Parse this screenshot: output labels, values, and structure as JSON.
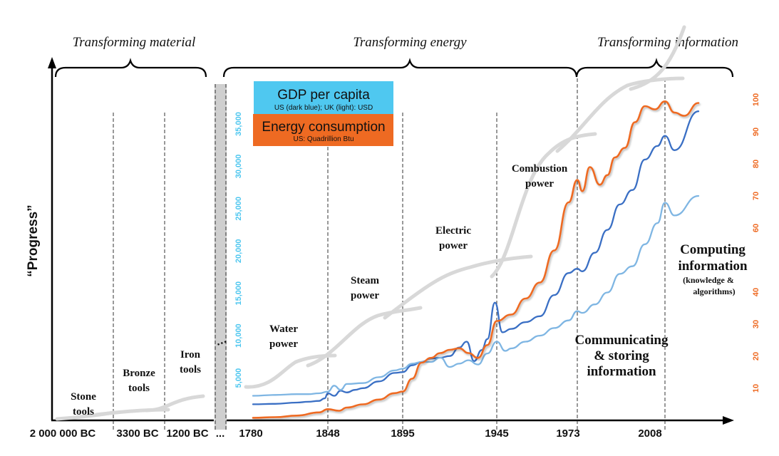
{
  "chart_data": {
    "type": "line",
    "title": "",
    "ylabel": "“Progress”",
    "xlabel": "",
    "eras": [
      {
        "label": "Transforming material"
      },
      {
        "label": "Transforming energy"
      },
      {
        "label": "Transforming information"
      }
    ],
    "x_ticks": [
      "2 000 000 BC",
      "3300 BC",
      "1200 BC",
      "...",
      "1780",
      "1848",
      "1895",
      "1945",
      "1973",
      "2008"
    ],
    "phases": [
      {
        "lines": [
          "Stone",
          "tools"
        ]
      },
      {
        "lines": [
          "Bronze",
          "tools"
        ]
      },
      {
        "lines": [
          "Iron",
          "tools"
        ]
      },
      {
        "lines": [
          "Water",
          "power"
        ]
      },
      {
        "lines": [
          "Steam",
          "power"
        ]
      },
      {
        "lines": [
          "Electric",
          "power"
        ]
      },
      {
        "lines": [
          "Combustion",
          "power"
        ]
      },
      {
        "lines": [
          "Communicating",
          "& storing",
          "information"
        ]
      },
      {
        "lines": [
          "Computing",
          "information"
        ],
        "sub": [
          "(knowledge &",
          "algorithms)"
        ]
      }
    ],
    "legend": {
      "gdp": {
        "title": "GDP per capita",
        "subtitle": "US (dark blue); UK (light): USD",
        "color": "#4fc8f0"
      },
      "energy": {
        "title": "Energy consumption",
        "subtitle": "US: Quadrillion Btu",
        "color": "#ee6a22"
      }
    },
    "left_axis": {
      "label": "GDP per capita (USD)",
      "color": "#4cc6ef",
      "ticks": [
        "5,000",
        "10,000",
        "15,000",
        "20,000",
        "25,000",
        "30,000",
        "35,000"
      ],
      "range": [
        0,
        38000
      ]
    },
    "right_axis": {
      "label": "Energy consumption (Quadrillion Btu)",
      "color": "#ee6a22",
      "ticks": [
        "10",
        "20",
        "30",
        "40",
        "60",
        "70",
        "80",
        "90",
        "100"
      ],
      "range": [
        0,
        105
      ]
    },
    "break_marker": "…",
    "series": [
      {
        "name": "US GDP per capita",
        "axis": "left",
        "color": "#3a6fc4",
        "x": [
          1780,
          1800,
          1820,
          1830,
          1840,
          1845,
          1848,
          1852,
          1856,
          1860,
          1865,
          1870,
          1880,
          1890,
          1895,
          1900,
          1905,
          1910,
          1915,
          1920,
          1925,
          1929,
          1933,
          1937,
          1940,
          1944,
          1947,
          1950,
          1955,
          1960,
          1965,
          1970,
          1973,
          1975,
          1980,
          1985,
          1990,
          1995,
          2000,
          2005,
          2008,
          2010,
          2015
        ],
        "values": [
          1900,
          1950,
          2100,
          2200,
          2300,
          2600,
          3200,
          2900,
          3500,
          3300,
          3600,
          3800,
          4600,
          5600,
          5700,
          6500,
          6900,
          7300,
          7400,
          7600,
          8600,
          9300,
          7000,
          8300,
          9600,
          13900,
          10400,
          10800,
          11600,
          12300,
          14800,
          17400,
          17900,
          17600,
          19800,
          22500,
          25500,
          27200,
          30800,
          32400,
          33600,
          31900,
          36500
        ]
      },
      {
        "name": "UK GDP per capita",
        "axis": "left",
        "color": "#7fb6e3",
        "x": [
          1780,
          1800,
          1820,
          1830,
          1840,
          1848,
          1852,
          1856,
          1860,
          1870,
          1880,
          1890,
          1895,
          1900,
          1905,
          1910,
          1915,
          1920,
          1925,
          1930,
          1935,
          1940,
          1945,
          1948,
          1950,
          1955,
          1960,
          1965,
          1970,
          1973,
          1975,
          1980,
          1985,
          1990,
          1995,
          2000,
          2005,
          2008,
          2010,
          2015
        ],
        "values": [
          2900,
          3000,
          3100,
          3100,
          3200,
          3400,
          4100,
          3600,
          4300,
          4400,
          5100,
          5900,
          6100,
          6700,
          6900,
          6900,
          7400,
          6300,
          6700,
          7100,
          6600,
          7900,
          9300,
          8200,
          8500,
          9300,
          10000,
          10900,
          11800,
          12900,
          12700,
          13700,
          15100,
          17300,
          18200,
          20800,
          23300,
          25700,
          24200,
          26500
        ]
      },
      {
        "name": "US Energy consumption",
        "axis": "right",
        "color": "#ee6a22",
        "x": [
          1780,
          1800,
          1820,
          1840,
          1848,
          1855,
          1860,
          1870,
          1880,
          1890,
          1895,
          1900,
          1905,
          1910,
          1915,
          1920,
          1925,
          1930,
          1935,
          1940,
          1945,
          1950,
          1955,
          1960,
          1965,
          1970,
          1973,
          1975,
          1978,
          1982,
          1985,
          1988,
          1992,
          1996,
          2000,
          2004,
          2008,
          2010,
          2012,
          2015
        ],
        "values": [
          0.8,
          1.0,
          1.5,
          2.5,
          3.5,
          3.0,
          4.0,
          5.0,
          6.5,
          8.5,
          9.0,
          13.0,
          18.0,
          19.5,
          21.0,
          22.0,
          22.5,
          21.0,
          19.5,
          23.5,
          31.0,
          33.0,
          38.0,
          43.0,
          53.0,
          68.0,
          75.0,
          71.5,
          79.0,
          73.5,
          76.5,
          82.0,
          85.0,
          93.0,
          98.0,
          97.0,
          99.5,
          96.0,
          95.0,
          99.0
        ]
      }
    ],
    "s_curves_note": "light grey S-curves depict successive technology waves (decorative)"
  }
}
